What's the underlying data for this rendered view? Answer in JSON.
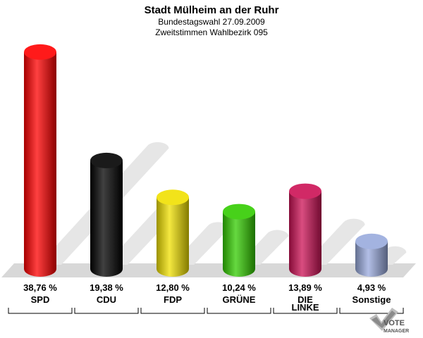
{
  "chart_data": {
    "type": "bar",
    "title": "Stadt Mülheim an der Ruhr",
    "subtitle_1": "Bundestagswahl 27.09.2009",
    "subtitle_2": "Zweitstimmen Wahlbezirk 095",
    "categories": [
      "SPD",
      "CDU",
      "FDP",
      "GRÜNE",
      "DIE LINKE",
      "Sonstige"
    ],
    "category_lines": [
      [
        "SPD"
      ],
      [
        "CDU"
      ],
      [
        "FDP"
      ],
      [
        "GRÜNE"
      ],
      [
        "DIE",
        "LINKE"
      ],
      [
        "Sonstige"
      ]
    ],
    "values": [
      38.76,
      19.38,
      12.8,
      10.24,
      13.89,
      4.93
    ],
    "value_labels": [
      "38,76 %",
      "19,38 %",
      "12,80 %",
      "10,24 %",
      "13,89 %",
      "4,93 %"
    ],
    "colors": [
      "#ff0000",
      "#000000",
      "#f0e000",
      "#33cc00",
      "#cc1155",
      "#99aadd"
    ],
    "ylim": [
      0,
      40
    ]
  },
  "logo": {
    "line1": "VOTE",
    "line2": "MANAGER"
  }
}
